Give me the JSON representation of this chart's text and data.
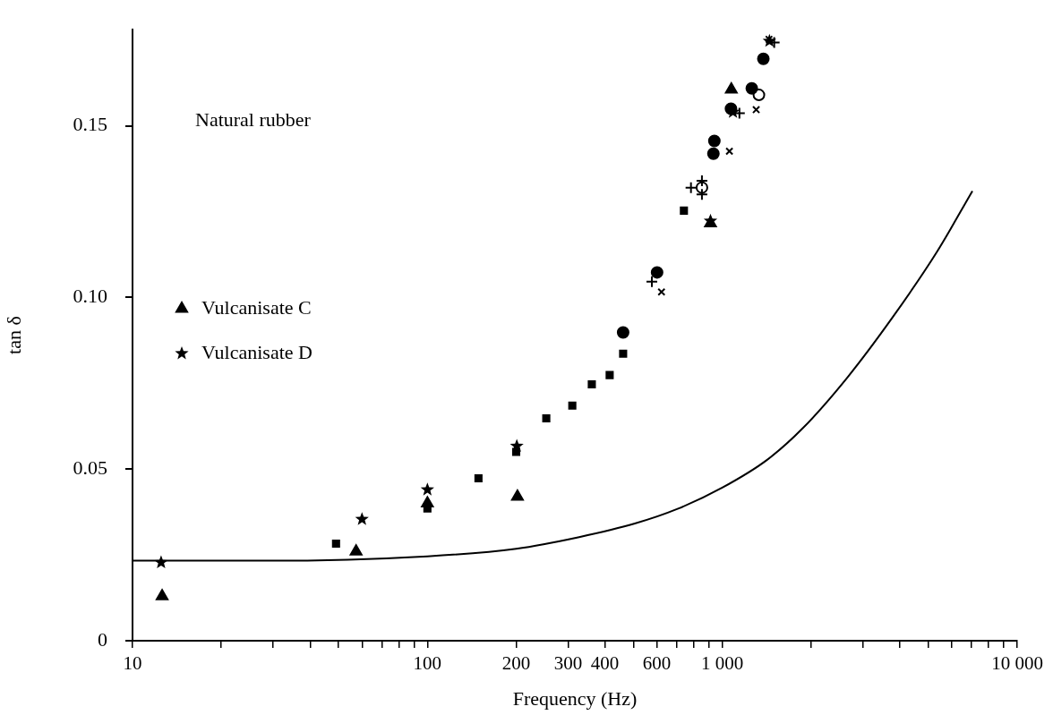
{
  "chart_data": {
    "type": "scatter",
    "xlabel": "Frequency (Hz)",
    "ylabel": "tan δ",
    "log": "x",
    "grid": false,
    "legend": "left",
    "xlim": [
      10,
      10000
    ],
    "ylim": [
      0,
      0.178
    ],
    "xticks": [
      10,
      {
        "value": 20,
        "label": null
      },
      {
        "value": 30,
        "label": null
      },
      {
        "value": 40,
        "label": null
      },
      {
        "value": 50,
        "label": null
      },
      {
        "value": 60,
        "label": null
      },
      {
        "value": 70,
        "label": null
      },
      {
        "value": 80,
        "label": null
      },
      {
        "value": 90,
        "label": null
      },
      100,
      200,
      300,
      400,
      {
        "value": 500,
        "label": null
      },
      600,
      {
        "value": 700,
        "label": null
      },
      {
        "value": 800,
        "label": null
      },
      {
        "value": 900,
        "label": null
      },
      {
        "value": 1000,
        "label": "1 000"
      },
      {
        "value": 2000,
        "label": null
      },
      {
        "value": 3000,
        "label": null
      },
      {
        "value": 4000,
        "label": null
      },
      {
        "value": 5000,
        "label": null
      },
      {
        "value": 6000,
        "label": null
      },
      {
        "value": 7000,
        "label": null
      },
      {
        "value": 8000,
        "label": null
      },
      {
        "value": 9000,
        "label": null
      },
      {
        "value": 10000,
        "label": "10 000"
      }
    ],
    "yticks": [
      0,
      0.05,
      {
        "value": 0.1,
        "label": "0.10"
      },
      0.15
    ],
    "annotations": [
      "Natural rubber"
    ],
    "series": [
      {
        "name": "Vulcanisate C",
        "color": "#000000",
        "marker": "triangle",
        "x": [
          12.6,
          57.3,
          100,
          202,
          912,
          1073
        ],
        "values": [
          0.013,
          0.026,
          0.04,
          0.042,
          0.1216,
          0.1606
        ]
      },
      {
        "name": "Vulcanisate D",
        "color": "#000000",
        "marker": "star",
        "x": [
          12.5,
          60,
          100,
          201,
          912,
          1087,
          1445
        ],
        "values": [
          0.0228,
          0.0354,
          0.044,
          0.0567,
          0.1223,
          0.154,
          0.1747
        ]
      },
      {
        "color": "#000000",
        "marker": "square",
        "x": [
          49,
          100,
          149,
          200,
          253,
          310,
          361,
          415,
          461,
          741
        ],
        "values": [
          0.0283,
          0.0385,
          0.0473,
          0.055,
          0.0648,
          0.0685,
          0.0747,
          0.0774,
          0.0836,
          0.1253
        ]
      },
      {
        "color": "#000000",
        "marker": "circle",
        "x": [
          461,
          601,
          933,
          940,
          1070,
          1259,
          1378
        ],
        "values": [
          0.0898,
          0.1073,
          0.1419,
          0.1456,
          0.155,
          0.1609,
          0.1695
        ]
      },
      {
        "color": "#000000",
        "marker": "circle-open",
        "x": [
          853,
          1331
        ],
        "values": [
          0.132,
          0.159
        ]
      },
      {
        "color": "#000000",
        "marker": "cross",
        "x": [
          577,
          783,
          853,
          853,
          1143,
          1500
        ],
        "values": [
          0.1046,
          0.132,
          0.134,
          0.13,
          0.1537,
          0.1743
        ]
      },
      {
        "color": "#000000",
        "marker": "x",
        "x": [
          622,
          1057,
          1303,
          1440
        ],
        "values": [
          0.1016,
          0.1426,
          0.1547,
          0.1752
        ]
      },
      {
        "type": "line",
        "color": "#000000",
        "marker": "none",
        "line_style": "solid",
        "x": [
          10,
          28.5,
          100,
          200,
          327,
          508,
          705,
          1000,
          1419,
          1874,
          2656,
          3765,
          5337,
          7050
        ],
        "values": [
          0.0233,
          0.0233,
          0.0246,
          0.0268,
          0.0302,
          0.0342,
          0.0384,
          0.0446,
          0.0527,
          0.0619,
          0.0767,
          0.094,
          0.1132,
          0.131
        ]
      }
    ]
  }
}
